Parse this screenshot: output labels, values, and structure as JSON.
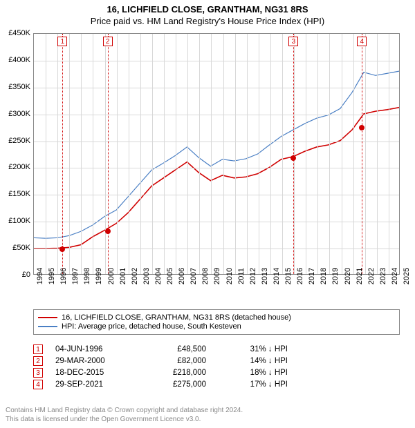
{
  "title": "16, LICHFIELD CLOSE, GRANTHAM, NG31 8RS",
  "subtitle": "Price paid vs. HM Land Registry's House Price Index (HPI)",
  "chart": {
    "type": "line",
    "background_color": "#ffffff",
    "grid_color": "#d8d8d8",
    "border_color": "#888888",
    "x": {
      "min": 1994,
      "max": 2025,
      "ticks": [
        1994,
        1995,
        1996,
        1997,
        1998,
        1999,
        2000,
        2001,
        2002,
        2003,
        2004,
        2005,
        2006,
        2007,
        2008,
        2009,
        2010,
        2011,
        2012,
        2013,
        2014,
        2015,
        2016,
        2017,
        2018,
        2019,
        2020,
        2021,
        2022,
        2023,
        2024,
        2025
      ]
    },
    "y": {
      "min": 0,
      "max": 450000,
      "ticks": [
        0,
        50000,
        100000,
        150000,
        200000,
        250000,
        300000,
        350000,
        400000,
        450000
      ],
      "labels": [
        "£0",
        "£50K",
        "£100K",
        "£150K",
        "£200K",
        "£250K",
        "£300K",
        "£350K",
        "£400K",
        "£450K"
      ]
    },
    "series": [
      {
        "name": "price_paid",
        "color": "#d00000",
        "width": 1.6,
        "points": [
          [
            1994,
            48000
          ],
          [
            1995,
            48000
          ],
          [
            1996,
            48500
          ],
          [
            1997,
            50000
          ],
          [
            1998,
            55000
          ],
          [
            1999,
            70000
          ],
          [
            2000,
            82000
          ],
          [
            2001,
            95000
          ],
          [
            2002,
            115000
          ],
          [
            2003,
            140000
          ],
          [
            2004,
            165000
          ],
          [
            2005,
            180000
          ],
          [
            2006,
            195000
          ],
          [
            2007,
            210000
          ],
          [
            2008,
            190000
          ],
          [
            2009,
            175000
          ],
          [
            2010,
            185000
          ],
          [
            2011,
            180000
          ],
          [
            2012,
            182000
          ],
          [
            2013,
            188000
          ],
          [
            2014,
            200000
          ],
          [
            2015,
            215000
          ],
          [
            2016,
            220000
          ],
          [
            2017,
            230000
          ],
          [
            2018,
            238000
          ],
          [
            2019,
            242000
          ],
          [
            2020,
            250000
          ],
          [
            2021,
            270000
          ],
          [
            2022,
            300000
          ],
          [
            2023,
            305000
          ],
          [
            2024,
            308000
          ],
          [
            2025,
            312000
          ]
        ]
      },
      {
        "name": "hpi",
        "color": "#4a7fc4",
        "width": 1.2,
        "points": [
          [
            1994,
            68000
          ],
          [
            1995,
            67000
          ],
          [
            1996,
            68000
          ],
          [
            1997,
            72000
          ],
          [
            1998,
            80000
          ],
          [
            1999,
            92000
          ],
          [
            2000,
            108000
          ],
          [
            2001,
            120000
          ],
          [
            2002,
            145000
          ],
          [
            2003,
            170000
          ],
          [
            2004,
            195000
          ],
          [
            2005,
            208000
          ],
          [
            2006,
            222000
          ],
          [
            2007,
            238000
          ],
          [
            2008,
            218000
          ],
          [
            2009,
            202000
          ],
          [
            2010,
            215000
          ],
          [
            2011,
            212000
          ],
          [
            2012,
            216000
          ],
          [
            2013,
            225000
          ],
          [
            2014,
            242000
          ],
          [
            2015,
            258000
          ],
          [
            2016,
            270000
          ],
          [
            2017,
            282000
          ],
          [
            2018,
            292000
          ],
          [
            2019,
            298000
          ],
          [
            2020,
            310000
          ],
          [
            2021,
            340000
          ],
          [
            2022,
            378000
          ],
          [
            2023,
            372000
          ],
          [
            2024,
            376000
          ],
          [
            2025,
            380000
          ]
        ]
      }
    ],
    "event_markers": [
      {
        "num": "1",
        "year": 1996.42,
        "price": 48500
      },
      {
        "num": "2",
        "year": 2000.24,
        "price": 82000
      },
      {
        "num": "3",
        "year": 2015.96,
        "price": 218000
      },
      {
        "num": "4",
        "year": 2021.74,
        "price": 275000
      }
    ],
    "title_fontsize": 13,
    "tick_fontsize": 11
  },
  "legend": {
    "items": [
      {
        "color": "#d00000",
        "label": "16, LICHFIELD CLOSE, GRANTHAM, NG31 8RS (detached house)"
      },
      {
        "color": "#4a7fc4",
        "label": "HPI: Average price, detached house, South Kesteven"
      }
    ]
  },
  "events": [
    {
      "num": "1",
      "date": "04-JUN-1996",
      "price": "£48,500",
      "pct": "31% ↓ HPI"
    },
    {
      "num": "2",
      "date": "29-MAR-2000",
      "price": "£82,000",
      "pct": "14% ↓ HPI"
    },
    {
      "num": "3",
      "date": "18-DEC-2015",
      "price": "£218,000",
      "pct": "18% ↓ HPI"
    },
    {
      "num": "4",
      "date": "29-SEP-2021",
      "price": "£275,000",
      "pct": "17% ↓ HPI"
    }
  ],
  "footer": {
    "line1": "Contains HM Land Registry data © Crown copyright and database right 2024.",
    "line2": "This data is licensed under the Open Government Licence v3.0."
  }
}
